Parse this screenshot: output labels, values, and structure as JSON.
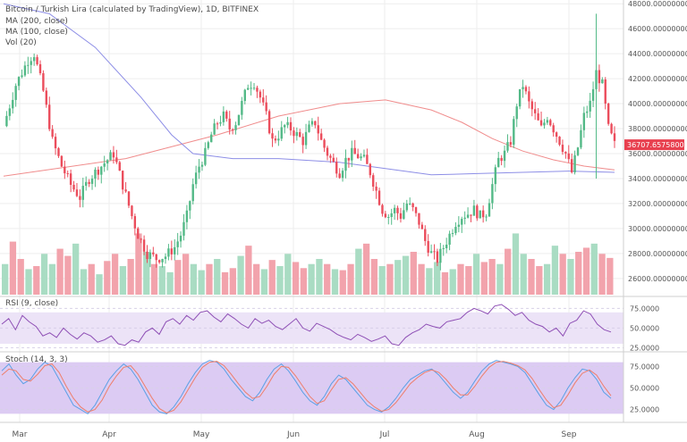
{
  "chart_header": {
    "title": "Bitcoin / Turkish Lira (calculated by TradingView), 1D, BITFINEX",
    "ma200_label": "MA (200, close)",
    "ma100_label": "MA (100, close)",
    "vol_label": "Vol (20)",
    "rsi_label": "RSI (9, close)",
    "stoch_label": "Stoch (14, 3, 3)"
  },
  "colors": {
    "up": "#53b987",
    "down": "#eb4d5c",
    "vol_up": "#a9dcc3",
    "vol_down": "#f2a3ac",
    "ma200": "#f08c8c",
    "ma100": "#8d8ee6",
    "rsi": "#8e4fb5",
    "rsi_band": "#ece3f7",
    "stoch_band": "#dccbf3",
    "stoch_k": "#5aa0e6",
    "stoch_d": "#ef7e6a",
    "price_badge": "#e8404f",
    "grid": "#eeeeee"
  },
  "chart_data": [
    {
      "type": "candlestick",
      "title": "Bitcoin / Turkish Lira (calculated by TradingView), 1D, BITFINEX",
      "x_ticks": [
        "Mar",
        "Apr",
        "May",
        "Jun",
        "Jul",
        "Aug",
        "Sep"
      ],
      "y_ticks": [
        "48000.00000000",
        "46000.00000000",
        "44000.00000000",
        "42000.00000000",
        "40000.00000000",
        "38000.00000000",
        "36000.00000000",
        "34000.00000000",
        "32000.00000000",
        "30000.00000000",
        "28000.00000000",
        "26000.00000000"
      ],
      "ylim": [
        24700,
        48300
      ],
      "last_price": "36707.65758000",
      "close_path_points": [
        [
          0,
          38200
        ],
        [
          4,
          41500
        ],
        [
          8,
          43500
        ],
        [
          10,
          44000
        ],
        [
          13,
          41000
        ],
        [
          16,
          37000
        ],
        [
          19,
          35000
        ],
        [
          22,
          33500
        ],
        [
          25,
          32500
        ],
        [
          28,
          34000
        ],
        [
          32,
          35000
        ],
        [
          36,
          36000
        ],
        [
          39,
          33500
        ],
        [
          42,
          31000
        ],
        [
          44,
          29500
        ],
        [
          47,
          28000
        ],
        [
          50,
          27600
        ],
        [
          53,
          27800
        ],
        [
          56,
          28500
        ],
        [
          58,
          29500
        ],
        [
          60,
          31000
        ],
        [
          62,
          33500
        ],
        [
          64,
          35000
        ],
        [
          66,
          36000
        ],
        [
          68,
          37500
        ],
        [
          70,
          38500
        ],
        [
          72,
          39000
        ],
        [
          74,
          38000
        ],
        [
          76,
          38500
        ],
        [
          78,
          40000
        ],
        [
          80,
          41500
        ],
        [
          82,
          41700
        ],
        [
          84,
          40500
        ],
        [
          86,
          39000
        ],
        [
          88,
          37000
        ],
        [
          90,
          37500
        ],
        [
          92,
          38200
        ],
        [
          94,
          38000
        ],
        [
          96,
          37500
        ],
        [
          98,
          37000
        ],
        [
          100,
          38000
        ],
        [
          102,
          38500
        ],
        [
          104,
          37000
        ],
        [
          106,
          36000
        ],
        [
          108,
          35200
        ],
        [
          110,
          34500
        ],
        [
          112,
          35500
        ],
        [
          114,
          36000
        ],
        [
          116,
          35800
        ],
        [
          118,
          35500
        ],
        [
          120,
          34500
        ],
        [
          122,
          33000
        ],
        [
          124,
          31500
        ],
        [
          126,
          31000
        ],
        [
          128,
          31500
        ],
        [
          130,
          31000
        ],
        [
          132,
          32000
        ],
        [
          134,
          31500
        ],
        [
          136,
          30500
        ],
        [
          138,
          29000
        ],
        [
          140,
          28000
        ],
        [
          142,
          27500
        ],
        [
          144,
          28500
        ],
        [
          146,
          29500
        ],
        [
          148,
          30500
        ],
        [
          150,
          31000
        ],
        [
          152,
          31200
        ],
        [
          154,
          31500
        ],
        [
          156,
          31000
        ],
        [
          158,
          31300
        ],
        [
          160,
          33500
        ],
        [
          162,
          35500
        ],
        [
          164,
          36000
        ],
        [
          166,
          37000
        ],
        [
          168,
          40000
        ],
        [
          170,
          41500
        ],
        [
          172,
          40000
        ],
        [
          174,
          39000
        ],
        [
          176,
          38000
        ],
        [
          178,
          39000
        ],
        [
          180,
          38000
        ],
        [
          182,
          37000
        ],
        [
          184,
          36000
        ],
        [
          186,
          34500
        ],
        [
          188,
          36500
        ],
        [
          190,
          39000
        ],
        [
          192,
          40000
        ],
        [
          194,
          42500
        ],
        [
          196,
          41500
        ],
        [
          198,
          38000
        ],
        [
          200,
          36700
        ]
      ],
      "ma200": [
        [
          0,
          34200
        ],
        [
          40,
          35600
        ],
        [
          70,
          37500
        ],
        [
          90,
          39000
        ],
        [
          110,
          40000
        ],
        [
          125,
          40300
        ],
        [
          140,
          39500
        ],
        [
          150,
          38500
        ],
        [
          160,
          37200
        ],
        [
          170,
          36200
        ],
        [
          180,
          35500
        ],
        [
          190,
          35000
        ],
        [
          200,
          34700
        ]
      ],
      "ma100": [
        [
          0,
          48000
        ],
        [
          15,
          47200
        ],
        [
          30,
          44500
        ],
        [
          45,
          40500
        ],
        [
          55,
          37500
        ],
        [
          62,
          36000
        ],
        [
          75,
          35600
        ],
        [
          90,
          35600
        ],
        [
          110,
          35300
        ],
        [
          125,
          34800
        ],
        [
          140,
          34300
        ],
        [
          155,
          34400
        ],
        [
          170,
          34500
        ],
        [
          185,
          34600
        ],
        [
          200,
          34500
        ]
      ]
    },
    {
      "type": "bar",
      "title": "Vol (20)",
      "series": [
        {
          "values": [
            30,
            52,
            35,
            25,
            28,
            40,
            30,
            45,
            38,
            50,
            25,
            30,
            20,
            33,
            40,
            28,
            35,
            60,
            42,
            30,
            28,
            22,
            34,
            40,
            30,
            24,
            30,
            35,
            22,
            26,
            38,
            48,
            30,
            25,
            34,
            28,
            40,
            32,
            26,
            30,
            35,
            30,
            25,
            24,
            30,
            45,
            50,
            35,
            28,
            30,
            34,
            38,
            42,
            30,
            26,
            32,
            22,
            25,
            30,
            28,
            40,
            32,
            35,
            30,
            45,
            60,
            40,
            35,
            28,
            30,
            48,
            40,
            35,
            42,
            46,
            50,
            40,
            36
          ]
        }
      ]
    },
    {
      "type": "line",
      "title": "RSI (9, close)",
      "y_ticks": [
        "75.0000",
        "50.0000",
        "25.0000"
      ],
      "ylim": [
        22,
        88
      ],
      "band": [
        30,
        70
      ],
      "values": [
        55,
        62,
        48,
        66,
        58,
        52,
        40,
        44,
        38,
        50,
        42,
        36,
        44,
        40,
        32,
        35,
        40,
        30,
        28,
        35,
        32,
        45,
        50,
        42,
        58,
        62,
        55,
        66,
        60,
        70,
        72,
        64,
        58,
        68,
        62,
        55,
        50,
        62,
        56,
        60,
        52,
        48,
        55,
        62,
        50,
        46,
        56,
        52,
        48,
        42,
        38,
        35,
        42,
        38,
        33,
        36,
        40,
        30,
        28,
        38,
        44,
        48,
        55,
        52,
        50,
        58,
        60,
        62,
        70,
        75,
        72,
        68,
        78,
        80,
        74,
        66,
        70,
        60,
        55,
        52,
        45,
        50,
        40,
        56,
        60,
        72,
        68,
        55,
        48,
        45
      ]
    },
    {
      "type": "line",
      "title": "Stoch (14, 3, 3)",
      "y_ticks": [
        "75.0000",
        "50.0000",
        "25.0000"
      ],
      "ylim": [
        10,
        90
      ],
      "band": [
        20,
        80
      ],
      "series": [
        {
          "values": [
            70,
            78,
            65,
            55,
            60,
            72,
            80,
            75,
            60,
            45,
            30,
            25,
            20,
            30,
            45,
            60,
            70,
            78,
            72,
            60,
            45,
            30,
            22,
            20,
            28,
            40,
            55,
            68,
            78,
            82,
            80,
            72,
            60,
            50,
            40,
            35,
            45,
            60,
            72,
            78,
            70,
            58,
            45,
            35,
            30,
            40,
            55,
            65,
            60,
            50,
            40,
            30,
            25,
            22,
            28,
            38,
            50,
            60,
            65,
            70,
            72,
            65,
            55,
            45,
            38,
            45,
            58,
            70,
            78,
            82,
            80,
            78,
            75,
            68,
            55,
            42,
            30,
            25,
            35,
            50,
            62,
            72,
            70,
            60,
            45,
            38
          ]
        },
        {
          "values": [
            65,
            72,
            70,
            60,
            58,
            66,
            76,
            78,
            68,
            52,
            38,
            28,
            22,
            25,
            36,
            52,
            64,
            74,
            76,
            66,
            52,
            38,
            26,
            21,
            24,
            34,
            48,
            62,
            74,
            80,
            81,
            76,
            66,
            55,
            45,
            38,
            40,
            52,
            66,
            75,
            74,
            64,
            52,
            40,
            32,
            35,
            48,
            60,
            62,
            55,
            45,
            35,
            28,
            23,
            25,
            33,
            44,
            55,
            62,
            68,
            71,
            68,
            60,
            50,
            42,
            42,
            52,
            64,
            74,
            80,
            81,
            79,
            76,
            71,
            61,
            48,
            36,
            27,
            30,
            42,
            56,
            67,
            71,
            65,
            52,
            41
          ]
        }
      ]
    }
  ]
}
